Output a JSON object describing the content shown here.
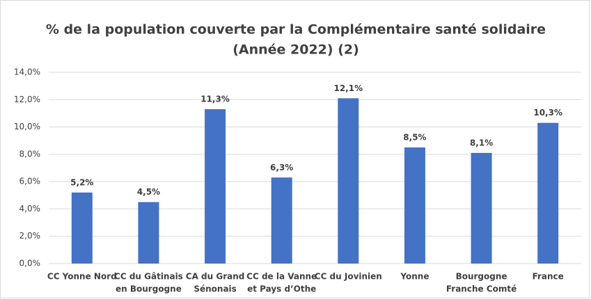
{
  "chart_data": {
    "type": "bar",
    "title": [
      "% de la population couverte par la Complémentaire santé solidaire",
      "(Année 2022) (2)"
    ],
    "categories": [
      [
        "CC Yonne Nord"
      ],
      [
        "CC du Gâtinais",
        "en Bourgogne"
      ],
      [
        "CA du Grand",
        "Sénonais"
      ],
      [
        "CC de la Vanne",
        "et Pays d’Othe"
      ],
      [
        "CC du Jovinien"
      ],
      [
        "Yonne"
      ],
      [
        "Bourgogne",
        "Franche Comté"
      ],
      [
        "France"
      ]
    ],
    "values": [
      5.2,
      4.5,
      11.3,
      6.3,
      12.1,
      8.5,
      8.1,
      10.3
    ],
    "value_labels": [
      "5,2%",
      "4,5%",
      "11,3%",
      "6,3%",
      "12,1%",
      "8,5%",
      "8,1%",
      "10,3%"
    ],
    "color": "#4472c4",
    "ylim": [
      0,
      14
    ],
    "yticks": [
      {
        "value": 0,
        "label": "0,0%"
      },
      {
        "value": 2,
        "label": "2,0%"
      },
      {
        "value": 4,
        "label": "4,0%"
      },
      {
        "value": 6,
        "label": "6,0%"
      },
      {
        "value": 8,
        "label": "8,0%"
      },
      {
        "value": 10,
        "label": "10,0%"
      },
      {
        "value": 12,
        "label": "12,0%"
      },
      {
        "value": 14,
        "label": "14,0%"
      }
    ],
    "grid": true
  }
}
